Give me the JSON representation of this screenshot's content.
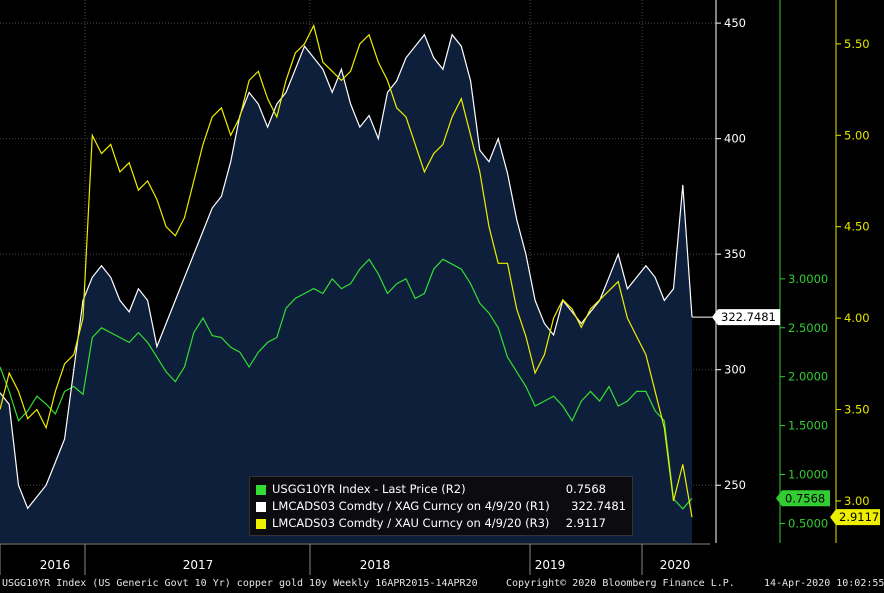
{
  "chart_data": {
    "type": "area",
    "x_ticks": [
      "2016",
      "2017",
      "2018",
      "2019",
      "2020"
    ],
    "axes": {
      "r1": {
        "ylim": [
          225,
          460
        ],
        "ticks": [
          250,
          300,
          350,
          400,
          450
        ],
        "color": "#ffffff"
      },
      "r2": {
        "ylim": [
          0.3,
          5.85
        ],
        "ticks": [
          0.5,
          1.0,
          1.5,
          2.0,
          2.5,
          3.0
        ],
        "tick_labels": [
          "0.5000",
          "1.0000",
          "1.5000",
          "2.0000",
          "2.5000",
          "3.0000"
        ],
        "color": "#33cc33"
      },
      "r3": {
        "ylim": [
          2.77,
          5.74
        ],
        "ticks": [
          3.0,
          3.5,
          4.0,
          4.5,
          5.0,
          5.5
        ],
        "tick_labels": [
          "3.00",
          "3.50",
          "4.00",
          "4.50",
          "5.00",
          "5.50"
        ],
        "color": "#e6e600"
      }
    },
    "series": [
      {
        "name": "USGG10YR Index - Last Price (R2)",
        "axis": "r2",
        "color": "#33dd33",
        "last": "0.7568",
        "values": [
          2.1,
          1.85,
          1.55,
          1.65,
          1.8,
          1.72,
          1.62,
          1.85,
          1.9,
          1.82,
          2.4,
          2.5,
          2.45,
          2.4,
          2.35,
          2.45,
          2.35,
          2.2,
          2.05,
          1.95,
          2.1,
          2.45,
          2.6,
          2.42,
          2.4,
          2.3,
          2.25,
          2.1,
          2.25,
          2.35,
          2.4,
          2.7,
          2.8,
          2.85,
          2.9,
          2.85,
          3.0,
          2.9,
          2.95,
          3.1,
          3.2,
          3.05,
          2.85,
          2.95,
          3.0,
          2.8,
          2.85,
          3.1,
          3.2,
          3.15,
          3.1,
          2.95,
          2.75,
          2.65,
          2.5,
          2.2,
          2.05,
          1.9,
          1.7,
          1.75,
          1.8,
          1.7,
          1.55,
          1.75,
          1.85,
          1.75,
          1.9,
          1.7,
          1.75,
          1.85,
          1.85,
          1.65,
          1.55,
          0.75,
          0.65,
          0.7568
        ]
      },
      {
        "name": "LMCADS03 Comdty / XAG Curncy on 4/9/20 (R1)",
        "axis": "r1",
        "color": "#ffffff",
        "last": "322.7481",
        "values": [
          290,
          285,
          250,
          240,
          245,
          250,
          260,
          270,
          300,
          330,
          340,
          345,
          340,
          330,
          325,
          335,
          330,
          310,
          320,
          330,
          340,
          350,
          360,
          370,
          375,
          390,
          410,
          420,
          415,
          405,
          415,
          420,
          430,
          440,
          435,
          430,
          420,
          430,
          415,
          405,
          410,
          400,
          420,
          425,
          435,
          440,
          445,
          435,
          430,
          445,
          440,
          425,
          395,
          390,
          400,
          385,
          365,
          350,
          330,
          320,
          315,
          330,
          325,
          320,
          325,
          330,
          340,
          350,
          335,
          340,
          345,
          340,
          330,
          335,
          380,
          322.7481
        ]
      },
      {
        "name": "LMCADS03 Comdty / XAU Curncy on 4/9/20 (R3)",
        "axis": "r3",
        "color": "#eeee00",
        "last": "2.9117",
        "values": [
          3.5,
          3.7,
          3.6,
          3.45,
          3.5,
          3.4,
          3.6,
          3.75,
          3.8,
          4.0,
          5.0,
          4.9,
          4.95,
          4.8,
          4.85,
          4.7,
          4.75,
          4.65,
          4.5,
          4.45,
          4.55,
          4.75,
          4.95,
          5.1,
          5.15,
          5.0,
          5.1,
          5.3,
          5.35,
          5.2,
          5.1,
          5.3,
          5.45,
          5.5,
          5.6,
          5.4,
          5.35,
          5.3,
          5.35,
          5.5,
          5.55,
          5.4,
          5.3,
          5.15,
          5.1,
          4.95,
          4.8,
          4.9,
          4.95,
          5.1,
          5.2,
          5.0,
          4.8,
          4.5,
          4.3,
          4.3,
          4.05,
          3.9,
          3.7,
          3.8,
          4.0,
          4.1,
          4.05,
          3.95,
          4.05,
          4.1,
          4.15,
          4.2,
          4.0,
          3.9,
          3.8,
          3.6,
          3.4,
          3.0,
          3.2,
          2.9117
        ]
      }
    ]
  },
  "legend": {
    "items": [
      {
        "label": "USGG10YR Index - Last Price (R2)",
        "value": "0.7568",
        "color": "#33dd33"
      },
      {
        "label": "LMCADS03 Comdty / XAG Curncy on 4/9/20 (R1)",
        "value": "322.7481",
        "color": "#ffffff"
      },
      {
        "label": "LMCADS03 Comdty / XAU Curncy on 4/9/20 (R3)",
        "value": "2.9117",
        "color": "#eeee00"
      }
    ]
  },
  "footer": {
    "left": "USGG10YR Index (US Generic Govt 10 Yr) copper gold 10y  Weekly 16APR2015-14APR20",
    "center": "Copyright© 2020 Bloomberg Finance L.P.",
    "right": "14-Apr-2020 10:02:55"
  }
}
